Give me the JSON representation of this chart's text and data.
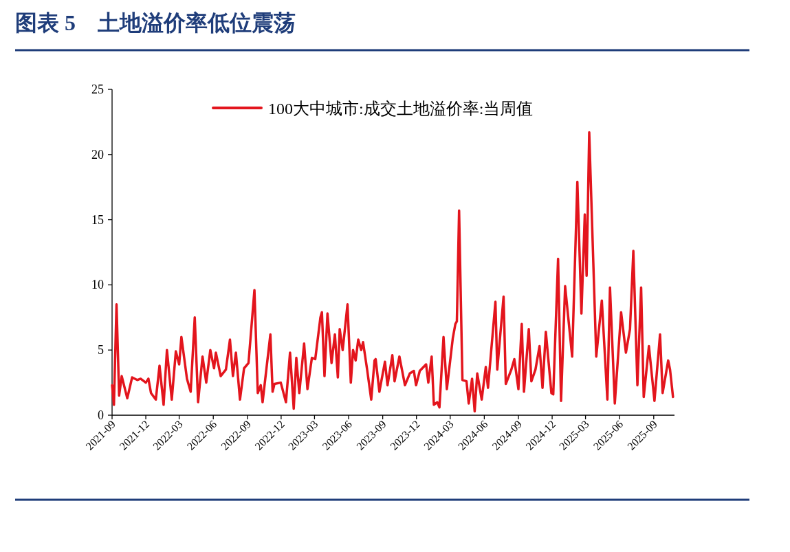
{
  "chart_data": {
    "type": "line",
    "title": "图表 5　土地溢价率低位震荡",
    "x": [
      "2021-09-01",
      "2021-09-06",
      "2021-09-13",
      "2021-09-20",
      "2021-09-27",
      "2021-10-12",
      "2021-10-25",
      "2021-11-08",
      "2021-11-17",
      "2021-12-01",
      "2021-12-08",
      "2021-12-15",
      "2021-12-28",
      "2022-01-07",
      "2022-01-18",
      "2022-01-27",
      "2022-02-09",
      "2022-02-20",
      "2022-03-01",
      "2022-03-07",
      "2022-03-22",
      "2022-04-01",
      "2022-04-12",
      "2022-04-21",
      "2022-05-03",
      "2022-05-13",
      "2022-05-24",
      "2022-06-03",
      "2022-06-08",
      "2022-06-21",
      "2022-07-05",
      "2022-07-16",
      "2022-07-24",
      "2022-08-01",
      "2022-08-12",
      "2022-08-23",
      "2022-09-04",
      "2022-09-20",
      "2022-09-29",
      "2022-10-07",
      "2022-10-12",
      "2022-11-02",
      "2022-11-08",
      "2022-11-13",
      "2022-11-30",
      "2022-12-14",
      "2022-12-25",
      "2023-01-04",
      "2023-01-11",
      "2023-01-19",
      "2023-02-01",
      "2023-02-10",
      "2023-02-22",
      "2023-03-03",
      "2023-03-17",
      "2023-03-21",
      "2023-03-28",
      "2023-04-05",
      "2023-04-16",
      "2023-04-25",
      "2023-05-03",
      "2023-05-08",
      "2023-05-16",
      "2023-05-29",
      "2023-06-07",
      "2023-06-13",
      "2023-06-20",
      "2023-06-27",
      "2023-07-05",
      "2023-07-10",
      "2023-07-21",
      "2023-08-01",
      "2023-08-10",
      "2023-08-13",
      "2023-08-23",
      "2023-09-07",
      "2023-09-14",
      "2023-09-27",
      "2023-10-03",
      "2023-10-16",
      "2023-10-31",
      "2023-11-13",
      "2023-11-24",
      "2023-11-30",
      "2023-12-10",
      "2023-12-27",
      "2024-01-02",
      "2024-01-11",
      "2024-01-17",
      "2024-01-26",
      "2024-02-01",
      "2024-02-12",
      "2024-02-21",
      "2024-03-08",
      "2024-03-15",
      "2024-03-19",
      "2024-03-25",
      "2024-04-03",
      "2024-04-14",
      "2024-04-20",
      "2024-04-29",
      "2024-05-06",
      "2024-05-13",
      "2024-05-25",
      "2024-06-05",
      "2024-06-11",
      "2024-07-01",
      "2024-07-06",
      "2024-07-23",
      "2024-07-29",
      "2024-08-13",
      "2024-08-21",
      "2024-09-01",
      "2024-09-10",
      "2024-09-16",
      "2024-09-29",
      "2024-10-06",
      "2024-10-17",
      "2024-10-28",
      "2024-11-05",
      "2024-11-14",
      "2024-11-29",
      "2024-12-04",
      "2024-12-17",
      "2024-12-25",
      "2025-01-05",
      "2025-01-24",
      "2025-02-07",
      "2025-02-18",
      "2025-02-27",
      "2025-03-04",
      "2025-03-11",
      "2025-03-30",
      "2025-04-14",
      "2025-04-29",
      "2025-05-06",
      "2025-05-19",
      "2025-06-05",
      "2025-06-18",
      "2025-06-29",
      "2025-07-08",
      "2025-07-19",
      "2025-07-29",
      "2025-08-05",
      "2025-08-19",
      "2025-09-03",
      "2025-09-18",
      "2025-09-25",
      "2025-10-10",
      "2025-10-15",
      "2025-10-23"
    ],
    "series": [
      {
        "name": "100大中城市:成交土地溢价率:当周值",
        "color": "#e3151d",
        "values": [
          2.3,
          0.8,
          8.5,
          1.5,
          3.0,
          1.3,
          2.9,
          2.7,
          2.8,
          2.5,
          2.8,
          1.7,
          1.2,
          3.8,
          0.8,
          5.0,
          1.2,
          4.9,
          3.9,
          6.0,
          2.8,
          1.8,
          7.5,
          1.0,
          4.5,
          2.5,
          5.0,
          3.6,
          4.8,
          3.0,
          3.5,
          5.8,
          3.0,
          4.8,
          1.2,
          3.6,
          4.0,
          9.6,
          1.7,
          2.3,
          1.0,
          6.2,
          1.8,
          2.4,
          2.5,
          1.0,
          4.8,
          0.5,
          4.4,
          1.7,
          5.5,
          2.0,
          4.4,
          4.3,
          7.5,
          7.9,
          3.0,
          7.8,
          4.0,
          6.2,
          2.9,
          6.6,
          5.0,
          8.5,
          2.5,
          5.0,
          4.2,
          5.8,
          5.0,
          5.6,
          3.5,
          1.2,
          4.2,
          4.3,
          1.8,
          4.1,
          2.3,
          4.6,
          2.6,
          4.5,
          2.3,
          3.2,
          3.4,
          2.3,
          3.4,
          3.9,
          2.5,
          4.5,
          0.8,
          1.0,
          0.6,
          6.0,
          2.0,
          5.9,
          7.0,
          7.2,
          15.7,
          2.7,
          2.6,
          0.9,
          2.8,
          0.3,
          3.2,
          1.2,
          3.7,
          2.1,
          8.7,
          3.5,
          9.1,
          2.4,
          3.5,
          4.3,
          2.0,
          7.0,
          1.8,
          6.6,
          2.6,
          3.5,
          5.3,
          2.1,
          6.4,
          1.7,
          1.6,
          12.0,
          1.1,
          9.9,
          4.5,
          17.9,
          7.8,
          15.4,
          10.7,
          21.7,
          4.5,
          8.8,
          1.2,
          9.8,
          0.9,
          7.9,
          4.8,
          6.6,
          12.6,
          2.3,
          9.8,
          1.4,
          5.3,
          1.1,
          6.2,
          1.7,
          4.2,
          3.5,
          1.4
        ]
      }
    ],
    "xlim": [
      "2021-09-01",
      "2025-10-27"
    ],
    "xticks": [
      {
        "value": "2021-09-01",
        "label": "2021-09"
      },
      {
        "value": "2021-12-01",
        "label": "2021-12"
      },
      {
        "value": "2022-03-01",
        "label": "2022-03"
      },
      {
        "value": "2022-06-01",
        "label": "2022-06"
      },
      {
        "value": "2022-09-01",
        "label": "2022-09"
      },
      {
        "value": "2022-12-01",
        "label": "2022-12"
      },
      {
        "value": "2023-03-01",
        "label": "2023-03"
      },
      {
        "value": "2023-06-01",
        "label": "2023-06"
      },
      {
        "value": "2023-09-01",
        "label": "2023-09"
      },
      {
        "value": "2023-12-01",
        "label": "2023-12"
      },
      {
        "value": "2024-03-01",
        "label": "2024-03"
      },
      {
        "value": "2024-06-01",
        "label": "2024-06"
      },
      {
        "value": "2024-09-01",
        "label": "2024-09"
      },
      {
        "value": "2024-12-01",
        "label": "2024-12"
      },
      {
        "value": "2025-03-01",
        "label": "2025-03"
      },
      {
        "value": "2025-06-01",
        "label": "2025-06"
      },
      {
        "value": "2025-09-01",
        "label": "2025-09"
      }
    ],
    "ylim": [
      0,
      25
    ],
    "yticks": [
      0,
      5,
      10,
      15,
      20,
      25
    ],
    "legend": "top"
  }
}
